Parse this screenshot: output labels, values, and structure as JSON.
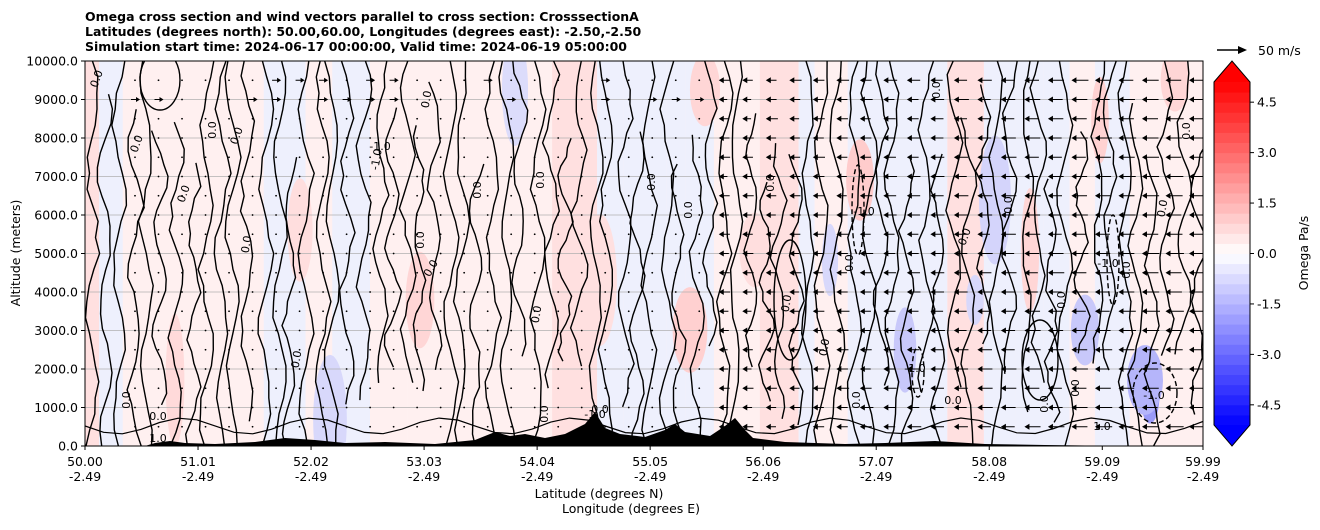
{
  "chart_data": {
    "type": "heatmap",
    "title_lines": [
      "Omega cross section and wind vectors parallel to cross section: CrosssectionA",
      "Latitudes (degrees north): 50.00,60.00, Longitudes (degrees east): -2.50,-2.50",
      "Simulation start time: 2024-06-17 00:00:00, Valid time: 2024-06-19 05:00:00"
    ],
    "ylabel": "Altitude (meters)",
    "xlabel_lat": "Latitude (degrees N)",
    "xlabel_lon": "Longitude (degrees E)",
    "ylim": [
      0,
      10000
    ],
    "yticks": [
      "0.0",
      "1000.0",
      "2000.0",
      "3000.0",
      "4000.0",
      "5000.0",
      "6000.0",
      "7000.0",
      "8000.0",
      "9000.0",
      "10000.0"
    ],
    "xticks": [
      {
        "lat": "50.00",
        "lon": "-2.49"
      },
      {
        "lat": "51.01",
        "lon": "-2.49"
      },
      {
        "lat": "52.02",
        "lon": "-2.49"
      },
      {
        "lat": "53.03",
        "lon": "-2.49"
      },
      {
        "lat": "54.04",
        "lon": "-2.49"
      },
      {
        "lat": "55.05",
        "lon": "-2.49"
      },
      {
        "lat": "56.06",
        "lon": "-2.49"
      },
      {
        "lat": "57.07",
        "lon": "-2.49"
      },
      {
        "lat": "58.08",
        "lon": "-2.49"
      },
      {
        "lat": "59.09",
        "lon": "-2.49"
      },
      {
        "lat": "59.99",
        "lon": "-2.49"
      }
    ],
    "grid": true,
    "colorbar": {
      "label": "Omega Pa/s",
      "range": [
        -5.1,
        5.1
      ],
      "ticks": [
        "-4.5",
        "-3.0",
        "-1.5",
        "0.0",
        "1.5",
        "3.0",
        "4.5"
      ],
      "negative_color": "#0000ff",
      "positive_color": "#ff0000",
      "zero_color": "#ffffff"
    },
    "quiver_key": "50 m/s",
    "contour_labels": [
      "0.0",
      "1.0",
      "-1.0"
    ],
    "colors": {
      "fill_neutral_pos": "#fff0f0",
      "fill_neutral_neg": "#eef0ff",
      "terrain": "#000000"
    }
  }
}
